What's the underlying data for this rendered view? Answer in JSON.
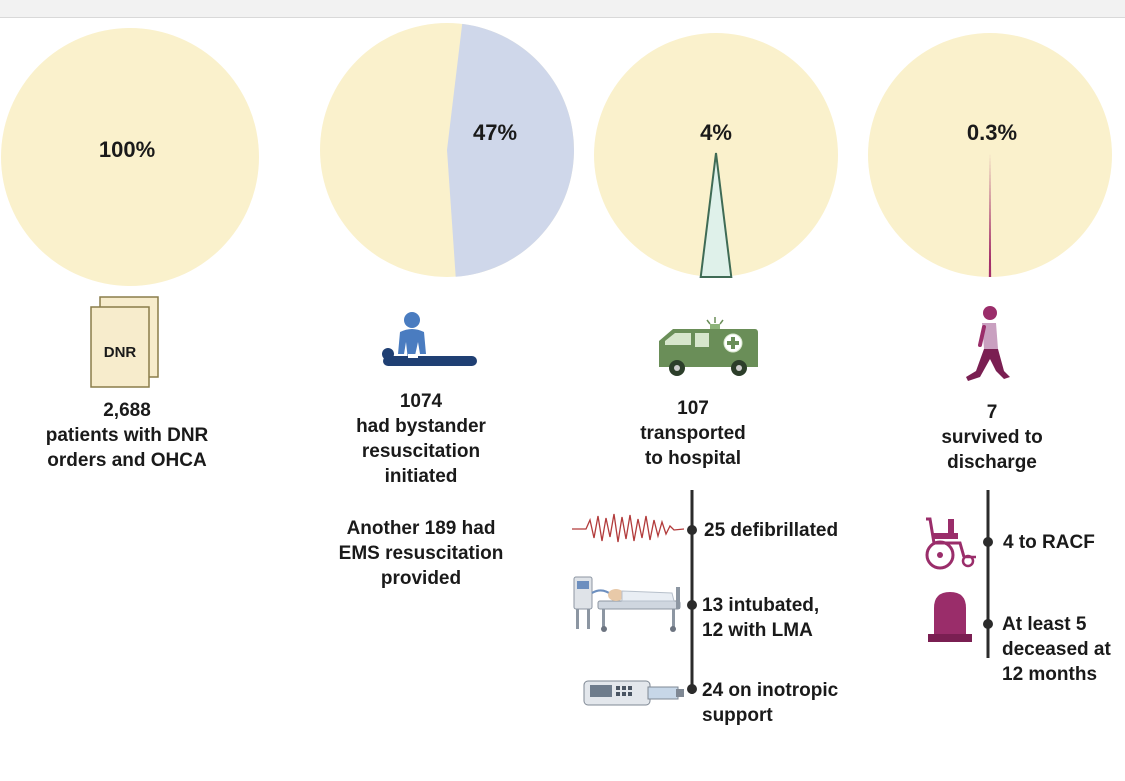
{
  "colors": {
    "pie_base": "#faf1cc",
    "bystander_slice": "#cfd7ea",
    "transport_slice": "#dff1ea",
    "transport_outline": "#3f6b55",
    "survival_slice": "#a3306b",
    "timeline": "#2b2b2b",
    "ambulance": "#6a8e58",
    "person_blue": "#4a7cc0",
    "survivor": "#9a2d6a",
    "paper": "#f7eccc"
  },
  "chart_data": {
    "type": "pie",
    "charts": [
      {
        "label": "100%",
        "value": 100
      },
      {
        "label": "47%",
        "value": 47
      },
      {
        "label": "4%",
        "value": 4
      },
      {
        "label": "0.3%",
        "value": 0.3
      }
    ]
  },
  "stages": [
    {
      "icon": "dnr-document-icon",
      "icon_text": "DNR",
      "count": "2,688",
      "lines": [
        "patients with DNR",
        "orders and OHCA"
      ]
    },
    {
      "icon": "cpr-person-icon",
      "count": "1074",
      "lines": [
        "had bystander",
        "resuscitation",
        "initiated"
      ],
      "note_lines": [
        "Another 189 had",
        "EMS resuscitation",
        "provided"
      ]
    },
    {
      "icon": "ambulance-icon",
      "count": "107",
      "lines": [
        "transported",
        "to hospital"
      ],
      "branches": [
        {
          "icon": "ecg-waveform-icon",
          "lines": [
            "25 defibrillated"
          ]
        },
        {
          "icon": "hospital-bed-ventilator-icon",
          "lines": [
            "13 intubated,",
            "12 with LMA"
          ]
        },
        {
          "icon": "infusion-pump-icon",
          "lines": [
            "24 on inotropic",
            "support"
          ]
        }
      ]
    },
    {
      "icon": "walking-person-icon",
      "count": "7",
      "lines": [
        "survived to",
        "discharge"
      ],
      "branches": [
        {
          "icon": "wheelchair-icon",
          "lines": [
            "4 to RACF"
          ]
        },
        {
          "icon": "tombstone-icon",
          "lines": [
            "At least 5",
            "deceased at",
            "12 months"
          ]
        }
      ]
    }
  ]
}
